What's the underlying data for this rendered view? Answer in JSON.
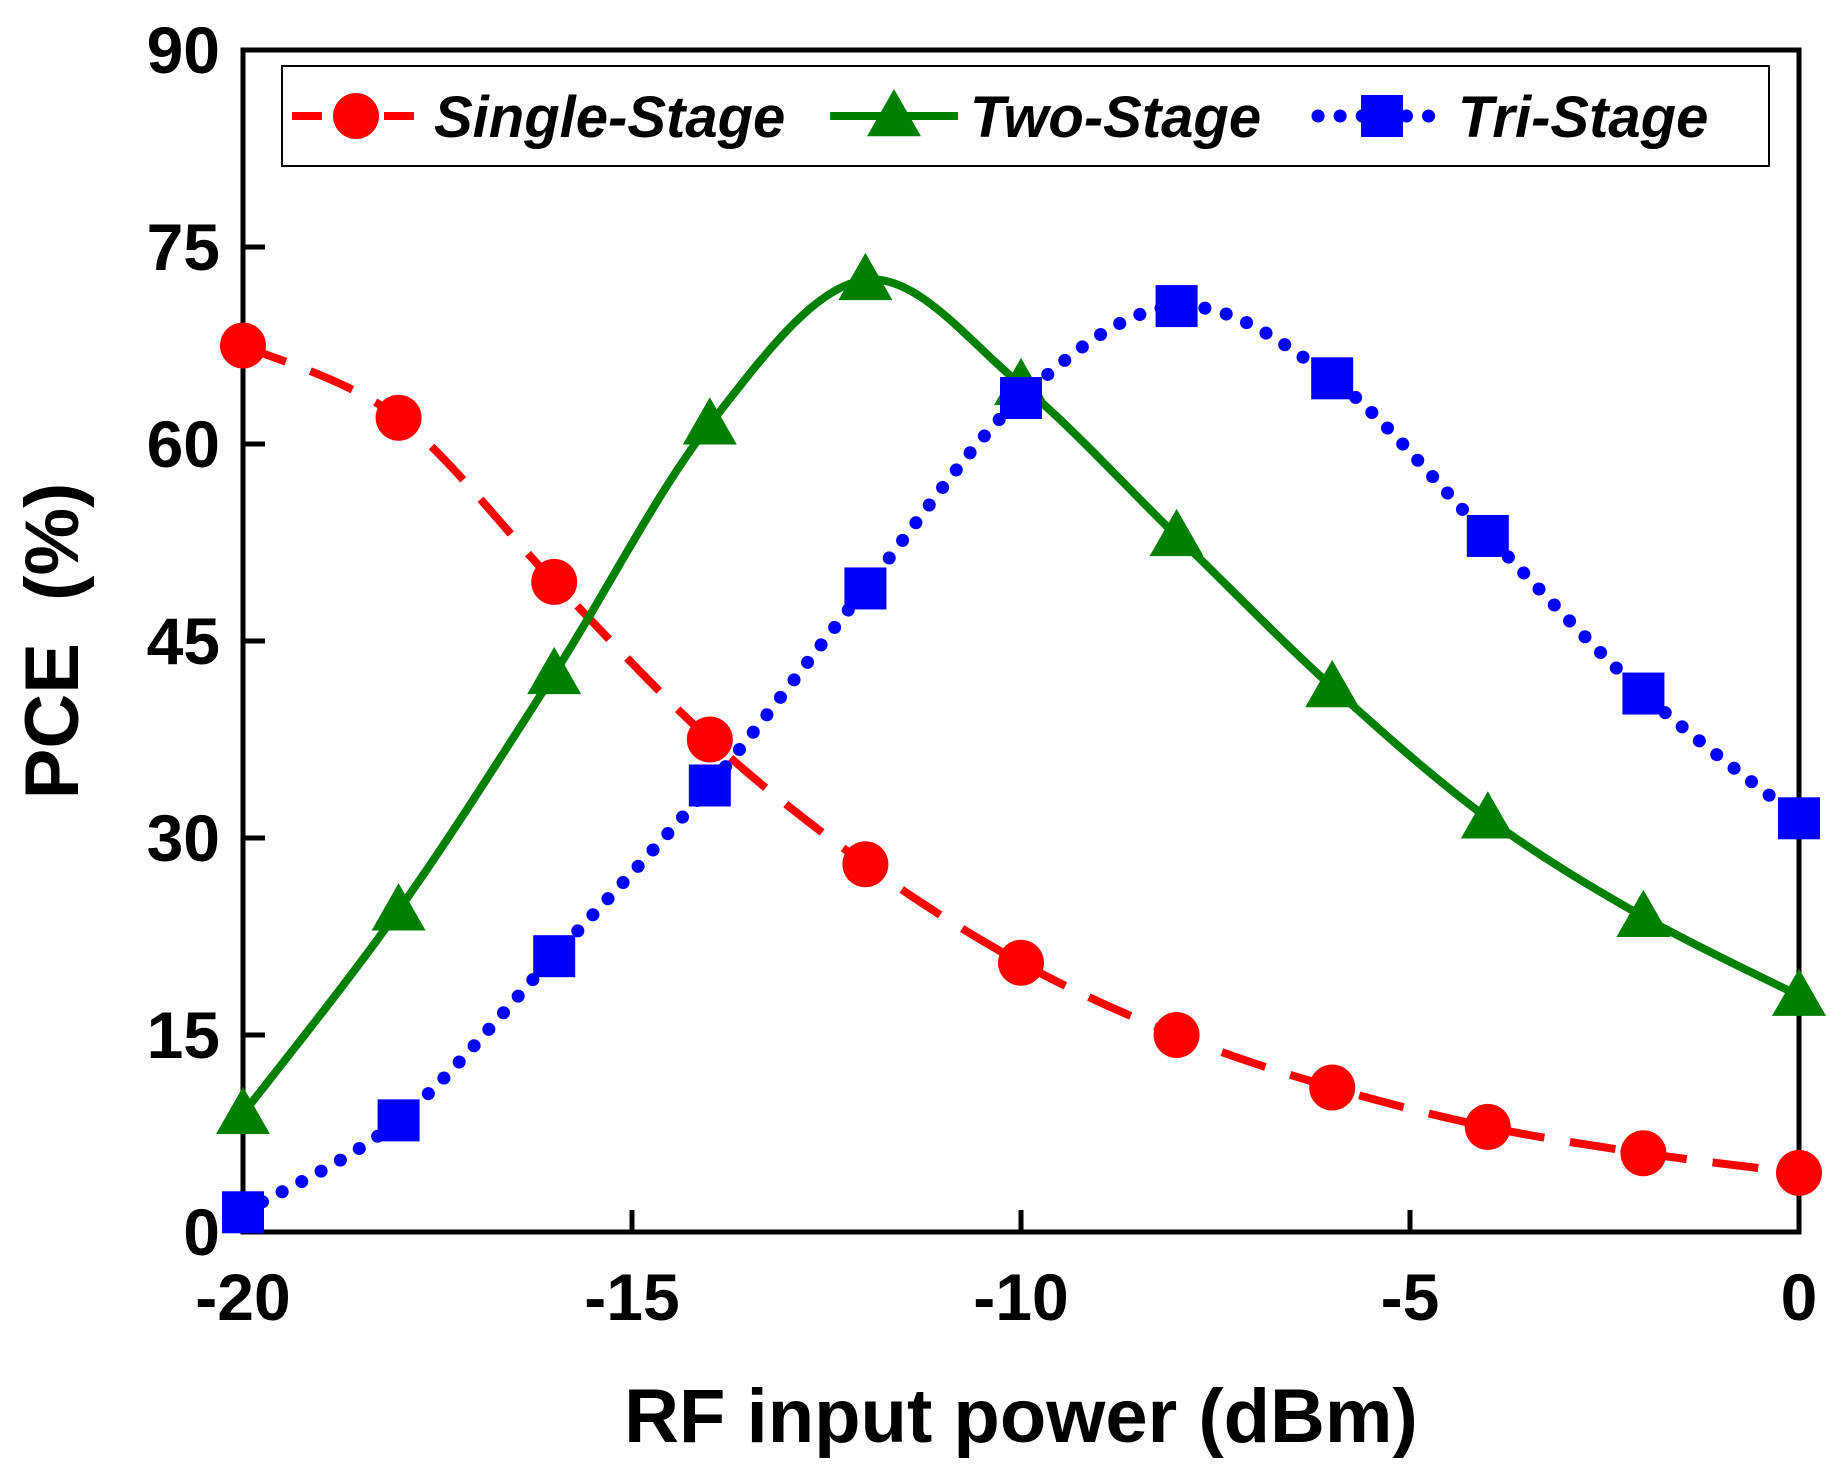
{
  "chart_data": {
    "type": "line",
    "title": "",
    "xlabel": "RF input power (dBm)",
    "ylabel": "PCE  (%)",
    "xlim": [
      -20,
      0
    ],
    "ylim": [
      0,
      90
    ],
    "x_ticks": [
      -20,
      -15,
      -10,
      -5,
      0
    ],
    "y_ticks": [
      0,
      15,
      30,
      45,
      60,
      75,
      90
    ],
    "x_tick_labels": [
      "-20",
      "-15",
      "-10",
      "-5",
      "0"
    ],
    "y_tick_labels": [
      "0",
      "15",
      "30",
      "45",
      "60",
      "75",
      "90"
    ],
    "legend_position": "top",
    "series": [
      {
        "name": "Single-Stage",
        "color": "#ff0000",
        "line_style": "dashed",
        "marker": "circle",
        "x": [
          -20,
          -18,
          -16,
          -14,
          -12,
          -10,
          -8,
          -6,
          -4,
          -2,
          0
        ],
        "values": [
          67.5,
          62,
          49.5,
          37.5,
          28,
          20.5,
          15,
          11,
          8,
          6,
          4.5
        ]
      },
      {
        "name": "Two-Stage",
        "color": "#008000",
        "line_style": "solid",
        "marker": "triangle",
        "x": [
          -20,
          -18,
          -16,
          -14,
          -12,
          -10,
          -8,
          -6,
          -4,
          -2,
          0
        ],
        "values": [
          9,
          24.5,
          42.5,
          61.5,
          72.5,
          64.5,
          53,
          41.5,
          31.5,
          24,
          18
        ]
      },
      {
        "name": "Tri-Stage",
        "color": "#0000ff",
        "line_style": "dotted",
        "marker": "square",
        "x": [
          -20,
          -18,
          -16,
          -14,
          -12,
          -10,
          -8,
          -6,
          -4,
          -2,
          0
        ],
        "values": [
          1.5,
          8.5,
          21,
          34,
          49,
          63.5,
          70.5,
          65,
          53,
          41,
          31.5
        ]
      }
    ]
  }
}
